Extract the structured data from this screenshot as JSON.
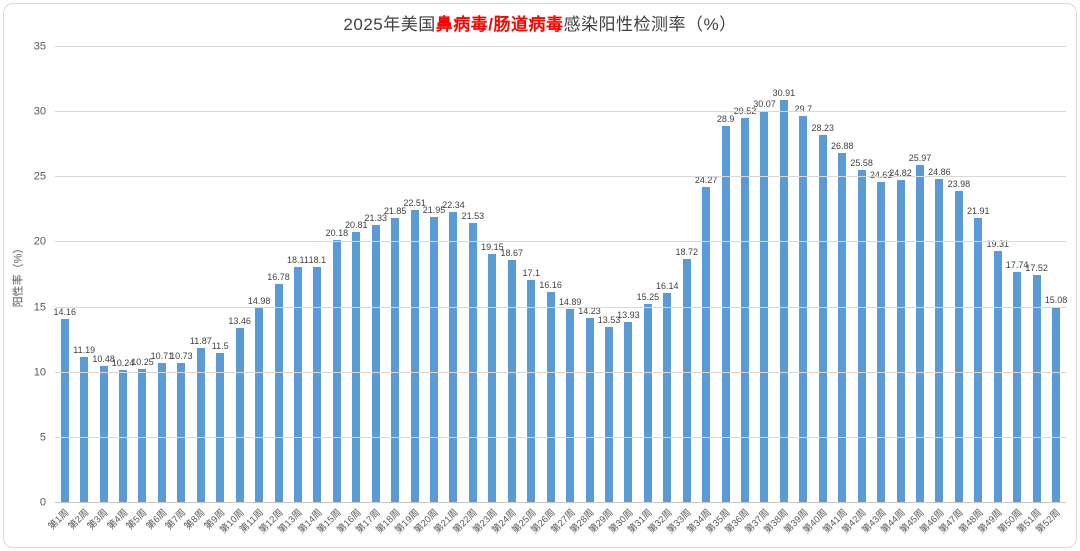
{
  "title": {
    "prefix": "2025年美国",
    "highlight": "鼻病毒/肠道病毒",
    "suffix": "感染阳性检测率（%）"
  },
  "colors": {
    "bar": "#5b9bd5",
    "title_highlight": "#ff0000",
    "title_text": "#404040",
    "axis_text": "#595959",
    "gridline": "#d9d9d9"
  },
  "chart_data": {
    "type": "bar",
    "title": "2025年美国鼻病毒/肠道病毒感染阳性检测率（%）",
    "xlabel": "",
    "ylabel": "阳性率（%）",
    "ylim": [
      0,
      35
    ],
    "yticks": [
      0,
      5,
      10,
      15,
      20,
      25,
      30,
      35
    ],
    "grid": true,
    "legend": false,
    "data_labels": true,
    "bar_color": "#5b9bd5",
    "categories": [
      "第1周",
      "第2周",
      "第3周",
      "第4周",
      "第5周",
      "第6周",
      "第7周",
      "第8周",
      "第9周",
      "第10周",
      "第11周",
      "第12周",
      "第13周",
      "第14周",
      "第15周",
      "第16周",
      "第17周",
      "第18周",
      "第19周",
      "第20周",
      "第21周",
      "第22周",
      "第23周",
      "第24周",
      "第25周",
      "第26周",
      "第27周",
      "第28周",
      "第29周",
      "第30周",
      "第31周",
      "第32周",
      "第33周",
      "第34周",
      "第35周",
      "第36周",
      "第37周",
      "第38周",
      "第39周",
      "第40周",
      "第41周",
      "第42周",
      "第43周",
      "第44周",
      "第45周",
      "第46周",
      "第47周",
      "第48周",
      "第49周",
      "第50周",
      "第51周",
      "第52周"
    ],
    "values": [
      14.16,
      11.19,
      10.48,
      10.24,
      10.25,
      10.71,
      10.73,
      11.87,
      11.5,
      13.46,
      14.98,
      16.78,
      18.11,
      18.1,
      20.18,
      20.81,
      21.33,
      21.85,
      22.51,
      21.95,
      22.34,
      21.53,
      19.15,
      18.67,
      17.1,
      16.16,
      14.89,
      14.23,
      13.53,
      13.93,
      15.25,
      16.14,
      18.72,
      24.27,
      28.9,
      29.52,
      30.07,
      30.91,
      29.7,
      28.23,
      26.88,
      25.58,
      24.63,
      24.82,
      25.97,
      24.86,
      23.98,
      21.91,
      19.31,
      17.74,
      17.52,
      15.08
    ]
  }
}
